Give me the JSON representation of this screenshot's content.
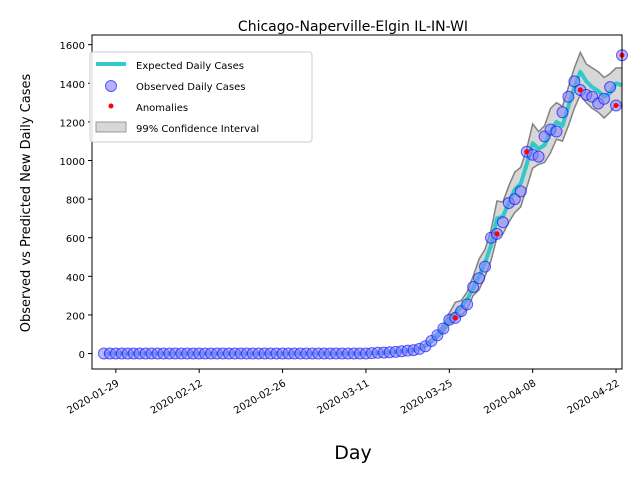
{
  "chart_data": {
    "type": "line",
    "title": "Chicago-Naperville-Elgin IL-IN-WI",
    "xlabel": "Day",
    "ylabel": "Observed vs Predicted New Daily Cases",
    "x_ticks": [
      "2020-01-29",
      "2020-02-12",
      "2020-02-26",
      "2020-03-11",
      "2020-03-25",
      "2020-04-08",
      "2020-04-22"
    ],
    "y_ticks": [
      "0",
      "200",
      "400",
      "600",
      "800",
      "1000",
      "1200",
      "1400",
      "1600"
    ],
    "ylim": [
      -80,
      1650
    ],
    "xlim": [
      "2020-01-25",
      "2020-04-23"
    ],
    "legend": {
      "position": "upper-left",
      "entries": [
        "Expected Daily Cases",
        "Observed Daily Cases",
        "Anomalies",
        "99% Confidence Interval"
      ]
    },
    "colors": {
      "expected": "#34c9c9",
      "observed_face": "#8080ff",
      "observed_edge": "#0000ff",
      "anomaly": "#ff0000",
      "ci_fill": "#bdbdbd",
      "ci_edge": "#555555"
    },
    "start_date": "2020-01-27",
    "observed": [
      0,
      0,
      0,
      0,
      0,
      0,
      0,
      0,
      0,
      0,
      0,
      0,
      0,
      0,
      0,
      0,
      0,
      0,
      0,
      0,
      0,
      0,
      0,
      0,
      0,
      0,
      0,
      0,
      0,
      0,
      0,
      0,
      0,
      0,
      0,
      0,
      0,
      0,
      0,
      0,
      0,
      0,
      0,
      0,
      0,
      2,
      4,
      5,
      7,
      9,
      12,
      15,
      18,
      24,
      38,
      65,
      95,
      130,
      175,
      185,
      220,
      255,
      345,
      390,
      450,
      600,
      620,
      680,
      780,
      800,
      840,
      1045,
      1030,
      1020,
      1125,
      1160,
      1150,
      1250,
      1330,
      1410,
      1365,
      1340,
      1330,
      1295,
      1320,
      1380,
      1285,
      1545
    ],
    "expected": [
      0,
      0,
      0,
      0,
      0,
      0,
      0,
      0,
      0,
      0,
      0,
      0,
      0,
      0,
      0,
      0,
      0,
      0,
      0,
      0,
      0,
      0,
      0,
      0,
      0,
      0,
      0,
      0,
      0,
      0,
      0,
      0,
      0,
      0,
      0,
      0,
      0,
      0,
      0,
      0,
      0,
      0,
      0,
      0,
      0,
      2,
      3,
      5,
      7,
      9,
      12,
      15,
      18,
      25,
      40,
      65,
      95,
      130,
      180,
      210,
      240,
      280,
      340,
      400,
      470,
      560,
      700,
      710,
      780,
      850,
      880,
      980,
      1090,
      1060,
      1080,
      1150,
      1200,
      1180,
      1280,
      1380,
      1460,
      1410,
      1380,
      1360,
      1330,
      1350,
      1400,
      1390
    ],
    "ci_lower": [
      -3,
      -3,
      -3,
      -3,
      -3,
      -3,
      -3,
      -3,
      -3,
      -3,
      -3,
      -3,
      -3,
      -3,
      -3,
      -3,
      -3,
      -3,
      -3,
      -3,
      -3,
      -3,
      -3,
      -3,
      -3,
      -3,
      -3,
      -3,
      -3,
      -3,
      -3,
      -3,
      -3,
      -3,
      -3,
      -3,
      -3,
      -3,
      -3,
      -3,
      -3,
      -3,
      -3,
      -3,
      -3,
      -2,
      0,
      2,
      4,
      6,
      9,
      12,
      14,
      20,
      32,
      55,
      80,
      110,
      155,
      170,
      195,
      230,
      300,
      330,
      400,
      480,
      600,
      620,
      680,
      730,
      760,
      860,
      960,
      980,
      990,
      1040,
      1110,
      1100,
      1180,
      1270,
      1340,
      1300,
      1270,
      1250,
      1220,
      1250,
      1290,
      1280
    ],
    "ci_upper": [
      3,
      3,
      3,
      3,
      3,
      3,
      3,
      3,
      3,
      3,
      3,
      3,
      3,
      3,
      3,
      3,
      3,
      3,
      3,
      3,
      3,
      3,
      3,
      3,
      3,
      3,
      3,
      3,
      3,
      3,
      3,
      3,
      3,
      3,
      3,
      3,
      3,
      3,
      3,
      3,
      3,
      3,
      3,
      3,
      3,
      6,
      8,
      9,
      11,
      13,
      16,
      19,
      23,
      32,
      50,
      78,
      110,
      150,
      210,
      265,
      275,
      320,
      400,
      490,
      540,
      640,
      790,
      785,
      870,
      940,
      965,
      1060,
      1190,
      1150,
      1180,
      1270,
      1300,
      1280,
      1380,
      1480,
      1560,
      1500,
      1480,
      1460,
      1430,
      1450,
      1480,
      1480
    ],
    "anomaly_indices": [
      59,
      66,
      71,
      80,
      86,
      87
    ]
  }
}
